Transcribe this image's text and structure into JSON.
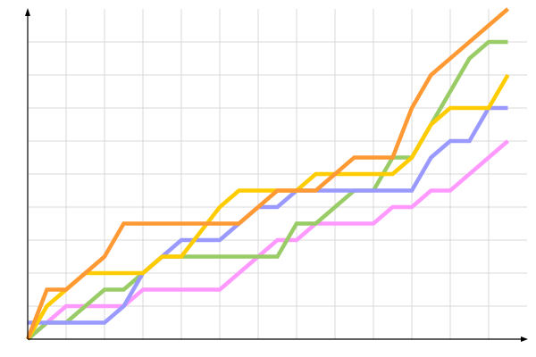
{
  "chart_data": {
    "type": "line",
    "title": "",
    "xlabel": "",
    "ylabel": "",
    "xlim": [
      0,
      26
    ],
    "ylim": [
      0,
      10
    ],
    "grid": true,
    "x_grid_step": 2,
    "y_grid_step": 1,
    "tick_labels": false,
    "legend": "none",
    "series": [
      {
        "color": "#ff99ff",
        "points": [
          [
            0,
            0
          ],
          [
            2,
            1
          ],
          [
            5,
            1
          ],
          [
            6,
            1.5
          ],
          [
            10,
            1.5
          ],
          [
            13,
            3
          ],
          [
            14,
            3
          ],
          [
            15,
            3.5
          ],
          [
            18,
            3.5
          ],
          [
            19,
            4
          ],
          [
            20,
            4
          ],
          [
            21,
            4.5
          ],
          [
            22,
            4.5
          ],
          [
            25,
            6
          ]
        ]
      },
      {
        "color": "#99cc66",
        "points": [
          [
            0,
            0
          ],
          [
            1,
            0.5
          ],
          [
            2,
            0.5
          ],
          [
            4,
            1.5
          ],
          [
            5,
            1.5
          ],
          [
            6,
            2
          ],
          [
            7,
            2.5
          ],
          [
            13,
            2.5
          ],
          [
            14,
            3.5
          ],
          [
            15,
            3.5
          ],
          [
            17,
            4.5
          ],
          [
            18,
            4.5
          ],
          [
            19,
            5.5
          ],
          [
            20,
            5.5
          ],
          [
            23,
            8.5
          ],
          [
            24,
            9
          ],
          [
            25,
            9
          ]
        ]
      },
      {
        "color": "#9999ff",
        "points": [
          [
            0,
            0.5
          ],
          [
            4,
            0.5
          ],
          [
            5,
            1
          ],
          [
            6,
            2
          ],
          [
            7,
            2.5
          ],
          [
            8,
            3
          ],
          [
            10,
            3
          ],
          [
            11,
            3.5
          ],
          [
            12,
            4
          ],
          [
            13,
            4
          ],
          [
            14,
            4.5
          ],
          [
            20,
            4.5
          ],
          [
            21,
            5.5
          ],
          [
            22,
            6
          ],
          [
            23,
            6
          ],
          [
            24,
            7
          ],
          [
            25,
            7
          ]
        ]
      },
      {
        "color": "#ffcc00",
        "points": [
          [
            0,
            0
          ],
          [
            1,
            1
          ],
          [
            2,
            1.5
          ],
          [
            3,
            2
          ],
          [
            6,
            2
          ],
          [
            7,
            2.5
          ],
          [
            8,
            2.5
          ],
          [
            10,
            4
          ],
          [
            11,
            4.5
          ],
          [
            14,
            4.5
          ],
          [
            15,
            5
          ],
          [
            19,
            5
          ],
          [
            20,
            5.5
          ],
          [
            21,
            6.5
          ],
          [
            22,
            7
          ],
          [
            24,
            7
          ],
          [
            25,
            8
          ]
        ]
      },
      {
        "color": "#ff9933",
        "points": [
          [
            0,
            0
          ],
          [
            1,
            1.5
          ],
          [
            2,
            1.5
          ],
          [
            4,
            2.5
          ],
          [
            5,
            3.5
          ],
          [
            11,
            3.5
          ],
          [
            13,
            4.5
          ],
          [
            15,
            4.5
          ],
          [
            17,
            5.5
          ],
          [
            19,
            5.5
          ],
          [
            20,
            7
          ],
          [
            21,
            8
          ],
          [
            25,
            10
          ]
        ]
      }
    ]
  },
  "colors": {
    "axis": "#000000",
    "grid": "#d9d9d9"
  }
}
